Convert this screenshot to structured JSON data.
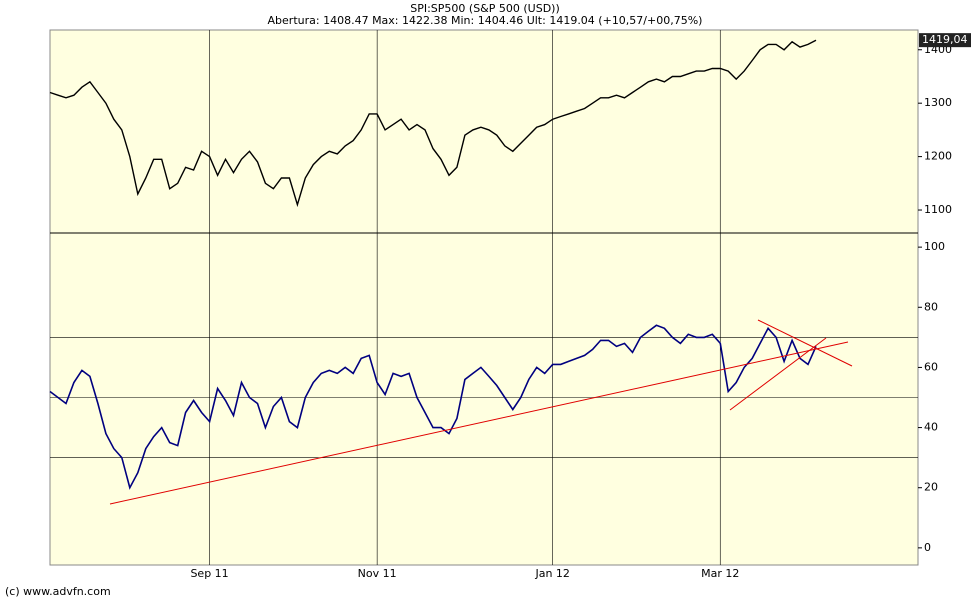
{
  "chart_data": [
    {
      "type": "line",
      "title": "SPI:SP500 (S&P 500 (USD))",
      "subtitle": "Abertura: 1408.47 Max: 1422.38 Min: 1404.46 Ult: 1419.04 (+10,57/+00,75%)",
      "last_label": "1419,04",
      "series": [
        {
          "color": "#000000",
          "values": [
            1320,
            1315,
            1310,
            1315,
            1330,
            1340,
            1320,
            1300,
            1270,
            1250,
            1200,
            1130,
            1160,
            1195,
            1195,
            1140,
            1150,
            1180,
            1175,
            1210,
            1200,
            1165,
            1195,
            1170,
            1195,
            1210,
            1190,
            1150,
            1140,
            1160,
            1160,
            1110,
            1160,
            1185,
            1200,
            1210,
            1205,
            1220,
            1230,
            1250,
            1280,
            1280,
            1250,
            1260,
            1270,
            1250,
            1260,
            1250,
            1215,
            1195,
            1165,
            1180,
            1240,
            1250,
            1255,
            1250,
            1240,
            1220,
            1210,
            1225,
            1240,
            1255,
            1260,
            1270,
            1275,
            1280,
            1285,
            1290,
            1300,
            1310,
            1310,
            1315,
            1310,
            1320,
            1330,
            1340,
            1345,
            1340,
            1350,
            1350,
            1355,
            1360,
            1360,
            1365,
            1365,
            1360,
            1345,
            1360,
            1380,
            1400,
            1410,
            1410,
            1400,
            1415,
            1405,
            1410,
            1418
          ]
        }
      ],
      "ylim": [
        1057,
        1437
      ],
      "yticks": [
        1100,
        1200,
        1300,
        1400
      ]
    },
    {
      "type": "line",
      "categories": [
        null,
        null,
        null,
        null,
        null,
        null,
        null,
        null,
        null,
        null,
        null,
        null,
        null,
        null,
        null,
        null,
        null,
        null,
        null,
        null,
        "Sep 11",
        null,
        null,
        null,
        null,
        null,
        null,
        null,
        null,
        null,
        null,
        null,
        null,
        null,
        null,
        null,
        null,
        null,
        null,
        null,
        null,
        "Nov 11",
        null,
        null,
        null,
        null,
        null,
        null,
        null,
        null,
        null,
        null,
        null,
        null,
        null,
        null,
        null,
        null,
        null,
        null,
        null,
        null,
        null,
        "Jan 12",
        null,
        null,
        null,
        null,
        null,
        null,
        null,
        null,
        null,
        null,
        null,
        null,
        null,
        null,
        null,
        null,
        null,
        null,
        null,
        null,
        "Mar 12",
        null,
        null,
        null,
        null,
        null,
        null,
        null,
        null,
        null,
        null,
        null,
        null
      ],
      "series": [
        {
          "color": "#000080",
          "values": [
            52,
            50,
            48,
            55,
            59,
            57,
            48,
            38,
            33,
            30,
            20,
            25,
            33,
            37,
            40,
            35,
            34,
            45,
            49,
            45,
            42,
            53,
            49,
            44,
            55,
            50,
            48,
            40,
            47,
            50,
            42,
            40,
            50,
            55,
            58,
            59,
            58,
            60,
            58,
            63,
            64,
            55,
            51,
            58,
            57,
            58,
            50,
            45,
            40,
            40,
            38,
            43,
            56,
            58,
            60,
            57,
            54,
            50,
            46,
            50,
            56,
            60,
            58,
            61,
            61,
            62,
            63,
            64,
            66,
            69,
            69,
            67,
            68,
            65,
            70,
            72,
            74,
            73,
            70,
            68,
            71,
            70,
            70,
            71,
            68,
            52,
            55,
            60,
            63,
            68,
            73,
            70,
            62,
            69,
            63,
            61,
            67
          ]
        }
      ],
      "ylim": [
        -5.7,
        104.7
      ],
      "yticks": [
        0,
        20,
        40,
        60,
        80,
        100
      ],
      "hlines": [
        30,
        50,
        70
      ]
    }
  ],
  "footer": "(c) www.advfn.com"
}
